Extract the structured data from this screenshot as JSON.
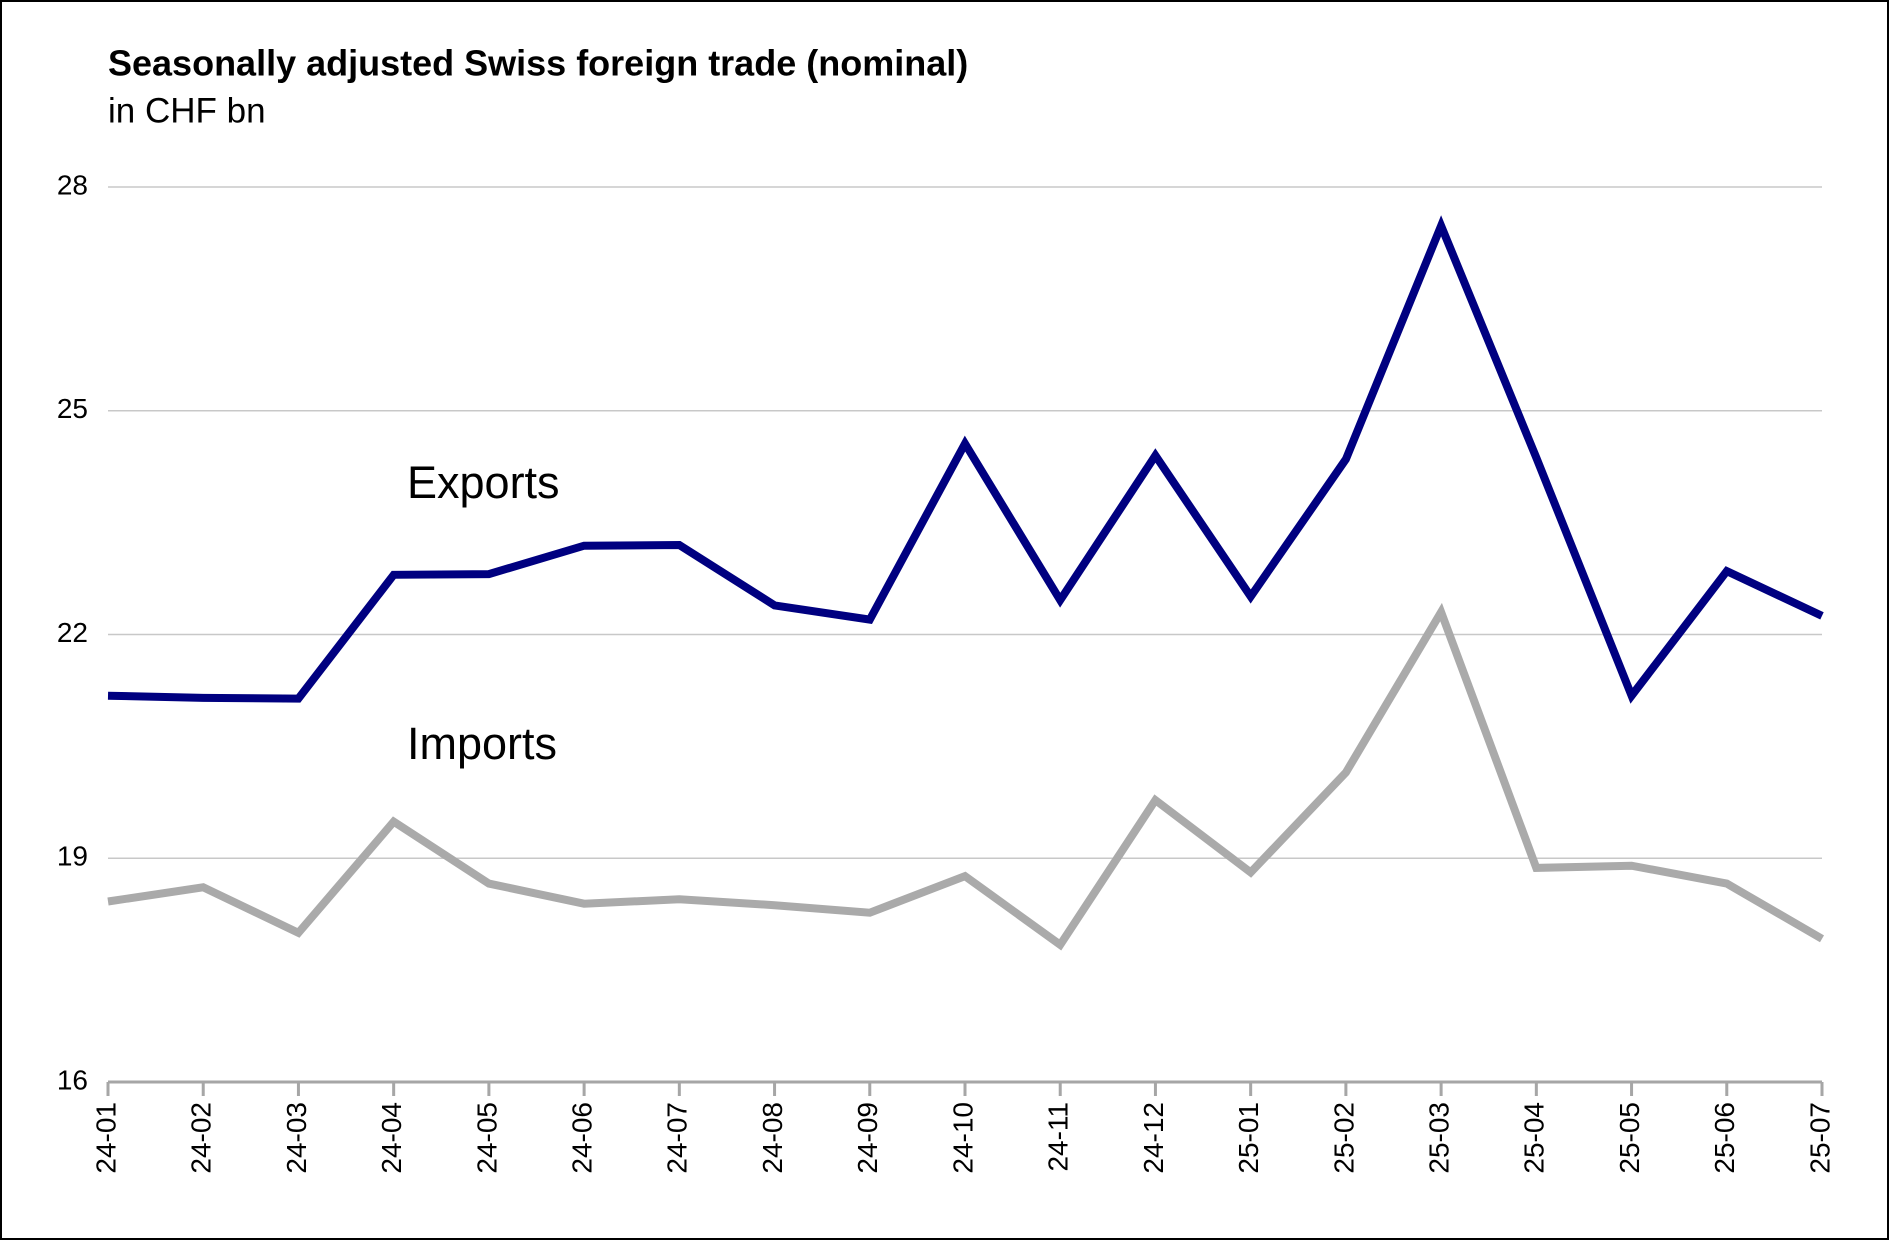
{
  "chart_data": {
    "type": "line",
    "title": "Seasonally adjusted Swiss foreign trade (nominal)",
    "subtitle": "in CHF bn",
    "categories": [
      "24-01",
      "24-02",
      "24-03",
      "24-04",
      "24-05",
      "24-06",
      "24-07",
      "24-08",
      "24-09",
      "24-10",
      "24-11",
      "24-12",
      "25-01",
      "25-02",
      "25-03",
      "25-04",
      "25-05",
      "25-06",
      "25-07"
    ],
    "series": [
      {
        "name": "Exports",
        "color": "#000080",
        "values": [
          21.18,
          21.15,
          21.14,
          22.8,
          22.81,
          23.19,
          23.2,
          22.39,
          22.2,
          24.56,
          22.46,
          24.4,
          22.51,
          24.35,
          27.48,
          24.37,
          21.18,
          22.85,
          22.25
        ]
      },
      {
        "name": "Imports",
        "color": "#aaaaaa",
        "values": [
          18.42,
          18.61,
          18.0,
          19.49,
          18.66,
          18.39,
          18.45,
          18.37,
          18.27,
          18.76,
          17.84,
          19.78,
          18.81,
          20.15,
          22.3,
          18.87,
          18.9,
          18.66,
          17.92
        ]
      }
    ],
    "ylim": [
      16,
      28
    ],
    "yticks": [
      16,
      19,
      22,
      25,
      28
    ],
    "grid": true
  }
}
